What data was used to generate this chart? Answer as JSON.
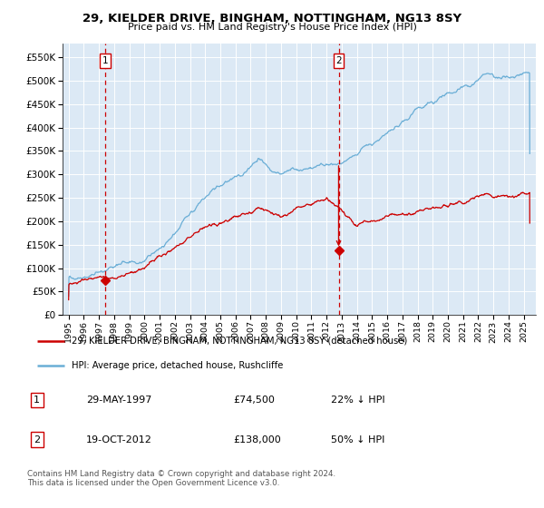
{
  "title1": "29, KIELDER DRIVE, BINGHAM, NOTTINGHAM, NG13 8SY",
  "title2": "Price paid vs. HM Land Registry's House Price Index (HPI)",
  "background_color": "#dce9f5",
  "hpi_color": "#6aaed6",
  "price_color": "#cc0000",
  "sale1_date_num": 1997.41,
  "sale1_price": 74500,
  "sale2_date_num": 2012.8,
  "sale2_price": 138000,
  "sale2_hpi_value": 276000,
  "legend_line1": "29, KIELDER DRIVE, BINGHAM, NOTTINGHAM, NG13 8SY (detached house)",
  "legend_line2": "HPI: Average price, detached house, Rushcliffe",
  "table_row1_date": "29-MAY-1997",
  "table_row1_price": "£74,500",
  "table_row1_hpi": "22% ↓ HPI",
  "table_row2_date": "19-OCT-2012",
  "table_row2_price": "£138,000",
  "table_row2_hpi": "50% ↓ HPI",
  "footnote": "Contains HM Land Registry data © Crown copyright and database right 2024.\nThis data is licensed under the Open Government Licence v3.0.",
  "ylim_min": 0,
  "ylim_max": 580000,
  "yticks": [
    0,
    50000,
    100000,
    150000,
    200000,
    250000,
    300000,
    350000,
    400000,
    450000,
    500000,
    550000
  ],
  "xlim_min": 1994.6,
  "xlim_max": 2025.8,
  "x_years": [
    1995,
    1996,
    1997,
    1998,
    1999,
    2000,
    2001,
    2002,
    2003,
    2004,
    2005,
    2006,
    2007,
    2008,
    2009,
    2010,
    2011,
    2012,
    2013,
    2014,
    2015,
    2016,
    2017,
    2018,
    2019,
    2020,
    2021,
    2022,
    2023,
    2024,
    2025
  ]
}
